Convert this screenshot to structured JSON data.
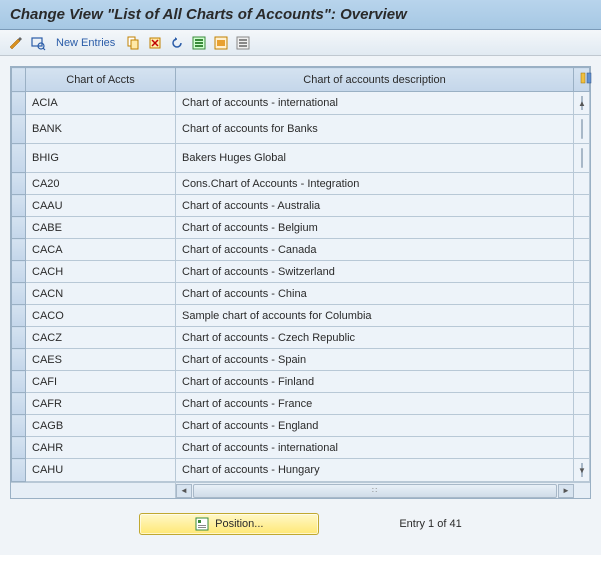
{
  "title": "Change View \"List of All Charts of Accounts\": Overview",
  "toolbar": {
    "new_entries_label": "New Entries"
  },
  "table": {
    "columns": {
      "code": "Chart of Accts",
      "desc": "Chart of accounts description"
    },
    "col_widths": {
      "sel": 14,
      "code": 140,
      "desc": 368,
      "cfg": 16,
      "scroll": 16
    },
    "rows": [
      {
        "code": "ACIA",
        "desc": "Chart of accounts - international"
      },
      {
        "code": "BANK",
        "desc": "Chart of accounts for Banks"
      },
      {
        "code": "BHIG",
        "desc": "Bakers Huges Global"
      },
      {
        "code": "CA20",
        "desc": "Cons.Chart of Accounts - Integration"
      },
      {
        "code": "CAAU",
        "desc": "Chart of accounts - Australia"
      },
      {
        "code": "CABE",
        "desc": "Chart of accounts - Belgium"
      },
      {
        "code": "CACA",
        "desc": "Chart of accounts - Canada"
      },
      {
        "code": "CACH",
        "desc": "Chart of accounts - Switzerland"
      },
      {
        "code": "CACN",
        "desc": "Chart of accounts - China"
      },
      {
        "code": "CACO",
        "desc": "Sample chart of accounts for Columbia"
      },
      {
        "code": "CACZ",
        "desc": "Chart of accounts - Czech Republic"
      },
      {
        "code": "CAES",
        "desc": "Chart of accounts - Spain"
      },
      {
        "code": "CAFI",
        "desc": "Chart of accounts - Finland"
      },
      {
        "code": "CAFR",
        "desc": "Chart of accounts - France"
      },
      {
        "code": "CAGB",
        "desc": "Chart of accounts - England"
      },
      {
        "code": "CAHR",
        "desc": "Chart of accounts - international"
      },
      {
        "code": "CAHU",
        "desc": "Chart of accounts - Hungary"
      }
    ]
  },
  "footer": {
    "position_label": "Position...",
    "entry_text": "Entry 1 of 41"
  },
  "colors": {
    "header_bg_top": "#b8d4ec",
    "header_bg_bot": "#a6c8e4",
    "cell_bg": "#edf3f9",
    "grid_border": "#b8c8d6",
    "col_header_top": "#d4e2f0",
    "col_header_bot": "#c4d6ea",
    "button_yellow_top": "#fff8c8",
    "button_yellow_bot": "#ffe875"
  }
}
